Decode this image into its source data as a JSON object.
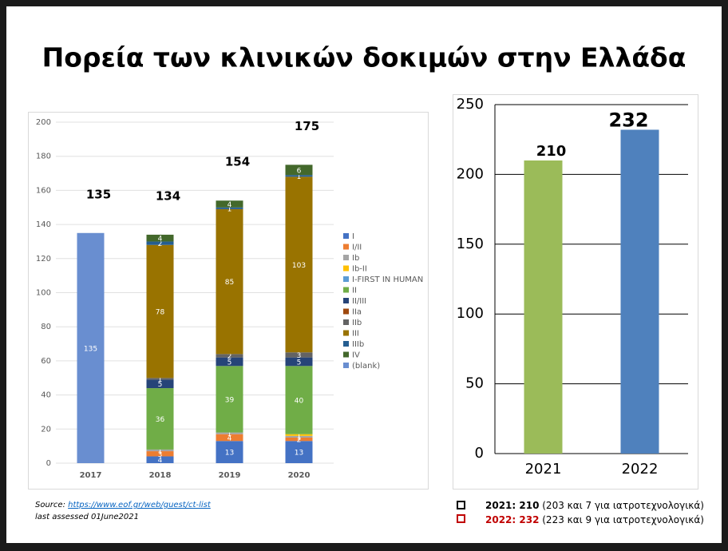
{
  "title": "Πορεία των κλινικών δοκιμών στην Ελλάδα",
  "source": {
    "prefix": "Source: ",
    "link": "https://www.eof.gr/web/guest/ct-list",
    "note": "last assessed 01June2021"
  },
  "notes": [
    {
      "label": "2021: 210",
      "detail": " (203 και 7 για ιατροτεχνολογικά)"
    },
    {
      "label": "2022: 232",
      "detail": " (223 και 9 για ιατροτεχνολογικά)"
    }
  ],
  "chart_data": [
    {
      "type": "stacked_bar",
      "categories": [
        "2017",
        "2018",
        "2019",
        "2020"
      ],
      "ylim": [
        0,
        200
      ],
      "yticks": [
        0,
        20,
        40,
        60,
        80,
        100,
        120,
        140,
        160,
        180,
        200
      ],
      "totals": [
        135,
        134,
        154,
        175
      ],
      "series": [
        {
          "name": "I",
          "color": "#4472c4",
          "values": [
            0,
            4,
            13,
            13
          ]
        },
        {
          "name": "I/II",
          "color": "#ed7d31",
          "values": [
            0,
            3,
            4,
            2
          ]
        },
        {
          "name": "Ib",
          "color": "#a5a5a5",
          "values": [
            0,
            1,
            1,
            1
          ]
        },
        {
          "name": "Ib-II",
          "color": "#ffc000",
          "values": [
            0,
            0,
            0,
            1
          ]
        },
        {
          "name": "I-FIRST IN HUMAN",
          "color": "#5b9bd5",
          "values": [
            0,
            0,
            0,
            0
          ]
        },
        {
          "name": "II",
          "color": "#70ad47",
          "values": [
            0,
            36,
            39,
            40
          ]
        },
        {
          "name": "II/III",
          "color": "#264478",
          "values": [
            0,
            5,
            5,
            5
          ]
        },
        {
          "name": "IIa",
          "color": "#9e480e",
          "values": [
            0,
            0,
            0,
            0
          ]
        },
        {
          "name": "IIb",
          "color": "#636363",
          "values": [
            0,
            1,
            2,
            3
          ]
        },
        {
          "name": "III",
          "color": "#997300",
          "values": [
            0,
            78,
            85,
            103
          ]
        },
        {
          "name": "IIIb",
          "color": "#255e91",
          "values": [
            0,
            2,
            1,
            1
          ]
        },
        {
          "name": "IV",
          "color": "#43682b",
          "values": [
            0,
            4,
            4,
            6
          ]
        },
        {
          "name": "(blank)",
          "color": "#698ed0",
          "values": [
            135,
            0,
            0,
            0
          ]
        }
      ]
    },
    {
      "type": "bar",
      "categories": [
        "2021",
        "2022"
      ],
      "values": [
        210,
        232
      ],
      "colors": [
        "#9bbb59",
        "#4f81bd"
      ],
      "ylim": [
        0,
        250
      ],
      "yticks": [
        0,
        50,
        100,
        150,
        200,
        250
      ],
      "grid": true
    }
  ]
}
